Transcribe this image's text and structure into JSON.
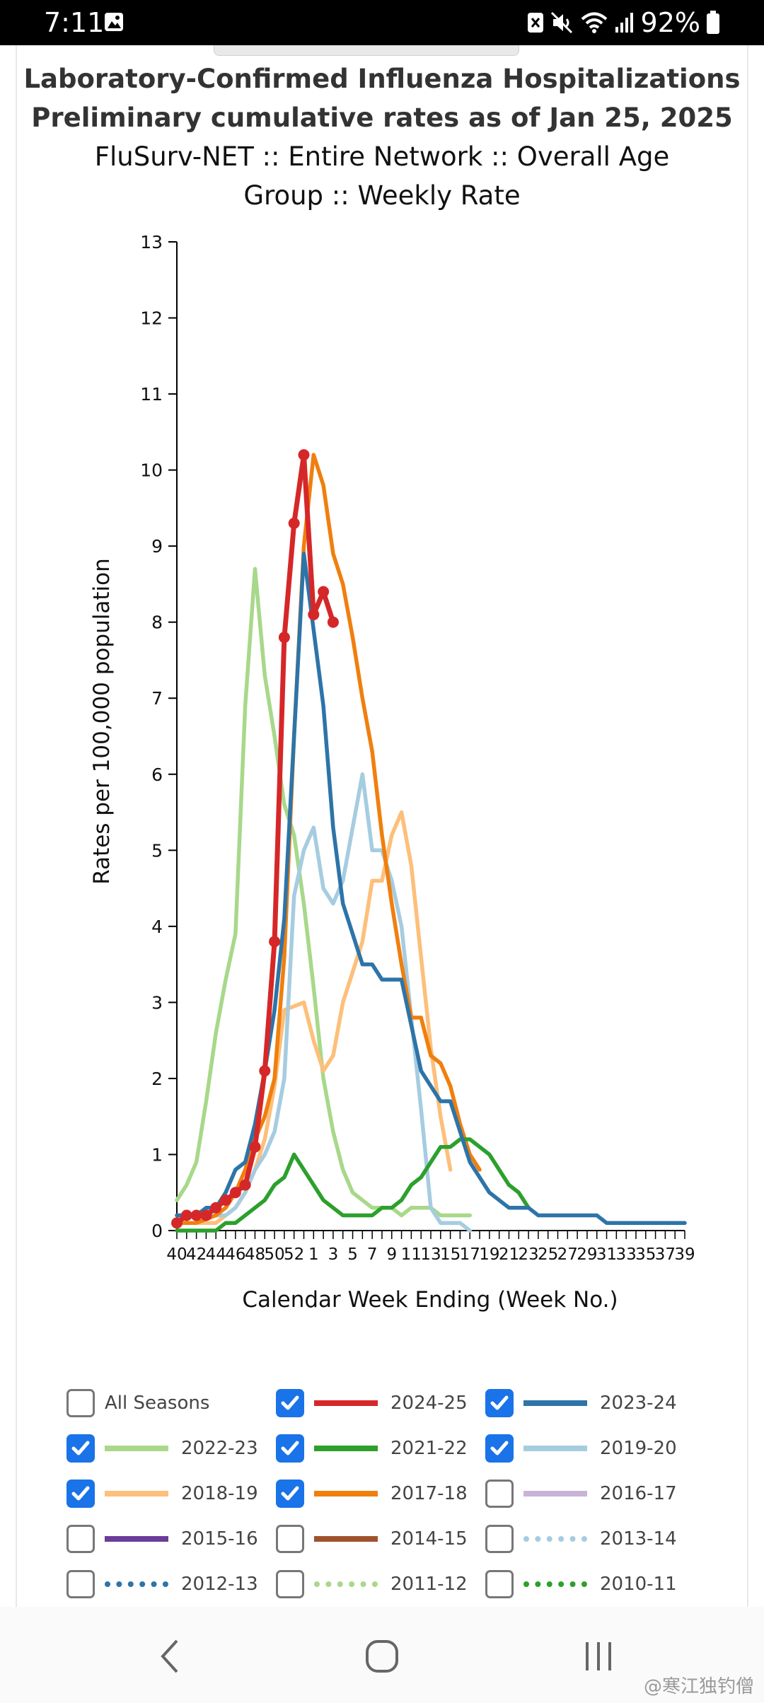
{
  "status_bar": {
    "time": "7:11",
    "battery": "92%"
  },
  "header": {
    "title_line1": "Laboratory-Confirmed Influenza Hospitalizations",
    "title_line2": "Preliminary cumulative rates as of Jan 25, 2025",
    "subtitle": "FluSurv-NET :: Entire Network :: Overall Age Group :: Weekly Rate"
  },
  "legend": {
    "items": [
      {
        "label": "All Seasons",
        "checked": false
      },
      {
        "label": "2024-25",
        "checked": true,
        "color": "#d62728",
        "style": "solid"
      },
      {
        "label": "2023-24",
        "checked": true,
        "color": "#2d74a8",
        "style": "solid"
      },
      {
        "label": "2022-23",
        "checked": true,
        "color": "#a8d88a",
        "style": "solid"
      },
      {
        "label": "2021-22",
        "checked": true,
        "color": "#2ca02c",
        "style": "solid"
      },
      {
        "label": "2019-20",
        "checked": true,
        "color": "#a6cce0",
        "style": "solid"
      },
      {
        "label": "2018-19",
        "checked": true,
        "color": "#fdbf7a",
        "style": "solid"
      },
      {
        "label": "2017-18",
        "checked": true,
        "color": "#f07f0e",
        "style": "solid"
      },
      {
        "label": "2016-17",
        "checked": false,
        "color": "#c9b3d6",
        "style": "solid"
      },
      {
        "label": "2015-16",
        "checked": false,
        "color": "#6a3d9a",
        "style": "solid"
      },
      {
        "label": "2014-15",
        "checked": false,
        "color": "#a0522d",
        "style": "solid"
      },
      {
        "label": "2013-14",
        "checked": false,
        "color": "#a6cce0",
        "style": "dotted"
      },
      {
        "label": "2012-13",
        "checked": false,
        "color": "#2d74a8",
        "style": "dotted"
      },
      {
        "label": "2011-12",
        "checked": false,
        "color": "#a8d88a",
        "style": "dotted"
      },
      {
        "label": "2010-11",
        "checked": false,
        "color": "#2ca02c",
        "style": "dotted"
      }
    ]
  },
  "chart_data": {
    "type": "line",
    "ylabel": "Rates per 100,000 population",
    "xlabel": "Calendar Week Ending (Week No.)",
    "ylim": [
      0,
      13
    ],
    "y_ticks": [
      "0",
      "1",
      "2",
      "3",
      "4",
      "5",
      "6",
      "7",
      "8",
      "9",
      "10",
      "11",
      "12",
      "13"
    ],
    "x_tick_labels": [
      "40",
      "42",
      "44",
      "46",
      "48",
      "50",
      "52",
      "1",
      "3",
      "5",
      "7",
      "9",
      "11",
      "13",
      "15",
      "17",
      "19",
      "21",
      "23",
      "25",
      "27",
      "29",
      "31",
      "33",
      "35",
      "37",
      "39"
    ],
    "grid": false,
    "legend_position": "bottom",
    "series": [
      {
        "name": "2022-23",
        "color": "#a8d88a",
        "style": "solid",
        "values": [
          0.4,
          0.6,
          0.9,
          1.7,
          2.6,
          3.3,
          3.9,
          6.9,
          8.7,
          7.3,
          6.5,
          5.6,
          5.2,
          4.3,
          3.2,
          2.0,
          1.3,
          0.8,
          0.5,
          0.4,
          0.3,
          0.3,
          0.3,
          0.2,
          0.3,
          0.3,
          0.3,
          0.2,
          0.2,
          0.2,
          0.2
        ]
      },
      {
        "name": "2018-19",
        "color": "#fdbf7a",
        "style": "solid",
        "values": [
          0.1,
          0.1,
          0.1,
          0.1,
          0.1,
          0.2,
          0.3,
          0.5,
          0.8,
          1.2,
          1.9,
          2.9,
          2.95,
          3.0,
          2.5,
          2.1,
          2.3,
          3.0,
          3.4,
          3.8,
          4.6,
          4.6,
          5.2,
          5.5,
          4.8,
          3.6,
          2.4,
          1.5,
          0.8
        ]
      },
      {
        "name": "2019-20",
        "color": "#a6cce0",
        "style": "solid",
        "values": [
          0.2,
          0.2,
          0.2,
          0.2,
          0.2,
          0.2,
          0.3,
          0.5,
          0.8,
          1.0,
          1.3,
          2.0,
          4.4,
          5.0,
          5.3,
          4.5,
          4.3,
          4.6,
          5.3,
          6.0,
          5.0,
          5.0,
          4.6,
          4.0,
          2.8,
          1.6,
          0.3,
          0.1,
          0.1,
          0.1,
          0.0
        ]
      },
      {
        "name": "2017-18",
        "color": "#f07f0e",
        "style": "solid",
        "values": [
          0.1,
          0.1,
          0.1,
          0.15,
          0.2,
          0.3,
          0.5,
          0.8,
          1.2,
          1.5,
          2.0,
          3.6,
          6.5,
          9.0,
          10.2,
          9.8,
          8.9,
          8.5,
          7.8,
          7.0,
          6.3,
          5.2,
          4.3,
          3.5,
          2.8,
          2.8,
          2.3,
          2.2,
          1.9,
          1.4,
          1.0,
          0.8
        ]
      },
      {
        "name": "2021-22",
        "color": "#2ca02c",
        "style": "solid",
        "values": [
          0.0,
          0.0,
          0.0,
          0.0,
          0.0,
          0.1,
          0.1,
          0.2,
          0.3,
          0.4,
          0.6,
          0.7,
          1.0,
          0.8,
          0.6,
          0.4,
          0.3,
          0.2,
          0.2,
          0.2,
          0.2,
          0.3,
          0.3,
          0.4,
          0.6,
          0.7,
          0.9,
          1.1,
          1.1,
          1.2,
          1.2,
          1.1,
          1.0,
          0.8,
          0.6,
          0.5,
          0.3
        ]
      },
      {
        "name": "2023-24",
        "color": "#2d74a8",
        "style": "solid",
        "values": [
          0.2,
          0.2,
          0.2,
          0.3,
          0.3,
          0.5,
          0.8,
          0.9,
          1.4,
          2.1,
          2.9,
          4.1,
          6.5,
          8.9,
          7.9,
          6.9,
          5.3,
          4.3,
          3.9,
          3.5,
          3.5,
          3.3,
          3.3,
          3.3,
          2.7,
          2.1,
          1.9,
          1.7,
          1.7,
          1.3,
          0.9,
          0.7,
          0.5,
          0.4,
          0.3,
          0.3,
          0.3,
          0.2,
          0.2,
          0.2,
          0.2,
          0.2,
          0.2,
          0.2,
          0.1,
          0.1,
          0.1,
          0.1,
          0.1,
          0.1,
          0.1,
          0.1,
          0.1
        ]
      },
      {
        "name": "2024-25",
        "color": "#d62728",
        "style": "solid",
        "markers": true,
        "values": [
          0.1,
          0.2,
          0.2,
          0.2,
          0.3,
          0.4,
          0.5,
          0.6,
          1.1,
          2.1,
          3.8,
          7.8,
          9.3,
          10.2,
          8.1,
          8.4,
          8.0
        ]
      }
    ]
  }
}
